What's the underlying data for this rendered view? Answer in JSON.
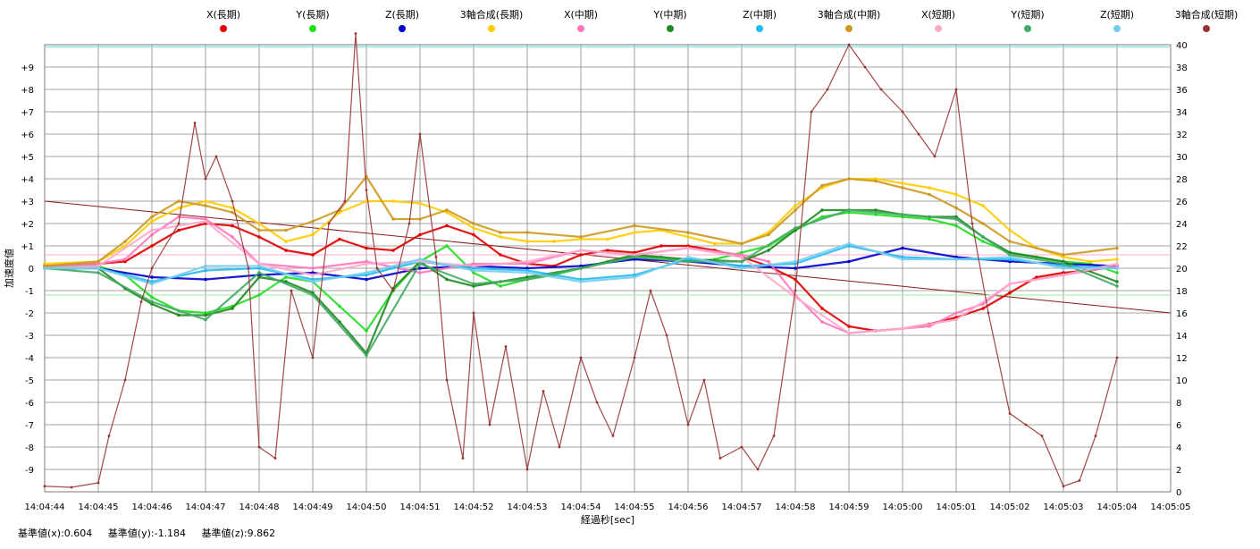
{
  "chart_data": {
    "type": "scatter",
    "xlabel": "経過秒[sec]",
    "ylabel": "加速度値",
    "x_ticks": [
      "14:04:44",
      "14:04:45",
      "14:04:46",
      "14:04:47",
      "14:04:48",
      "14:04:49",
      "14:04:50",
      "14:04:51",
      "14:04:52",
      "14:04:53",
      "14:04:54",
      "14:04:55",
      "14:04:56",
      "14:04:57",
      "14:04:58",
      "14:04:59",
      "14:05:00",
      "14:05:01",
      "14:05:02",
      "14:05:03",
      "14:05:04",
      "14:05:05"
    ],
    "y_left_ticks": [
      "+9",
      "+8",
      "+7",
      "+6",
      "+5",
      "+4",
      "+3",
      "+2",
      "+1",
      "0",
      "-1",
      "-2",
      "-3",
      "-4",
      "-5",
      "-6",
      "-7",
      "-8",
      "-9"
    ],
    "y_right_ticks": [
      "40",
      "38",
      "36",
      "34",
      "32",
      "30",
      "28",
      "26",
      "24",
      "22",
      "20",
      "18",
      "16",
      "14",
      "12",
      "10",
      "8",
      "6",
      "4",
      "2",
      "0"
    ],
    "xlim_seconds": [
      0,
      21
    ],
    "ylim_left": [
      -10,
      10
    ],
    "ylim_right": [
      0,
      40
    ],
    "grid": true,
    "legend_position": "top",
    "series": [
      {
        "name": "X(長期)",
        "color": "#e00000",
        "axis": "left",
        "x": [
          0,
          1,
          1.5,
          2,
          2.5,
          3,
          3.5,
          4,
          4.5,
          5,
          5.5,
          6,
          6.5,
          7,
          7.5,
          8,
          8.5,
          9,
          9.5,
          10,
          10.5,
          11,
          11.5,
          12,
          12.5,
          13,
          13.5,
          14,
          14.5,
          15,
          15.5,
          16,
          16.5,
          17,
          17.5,
          18,
          18.5,
          19,
          19.5,
          20
        ],
        "y": [
          0.1,
          0.2,
          0.3,
          1.0,
          1.7,
          2.0,
          1.9,
          1.4,
          0.8,
          0.6,
          1.3,
          0.9,
          0.8,
          1.5,
          1.9,
          1.5,
          0.6,
          0.2,
          0.1,
          0.6,
          0.8,
          0.7,
          1.0,
          1.0,
          0.8,
          0.5,
          0.1,
          -0.5,
          -1.8,
          -2.6,
          -2.8,
          -2.7,
          -2.5,
          -2.2,
          -1.8,
          -1.1,
          -0.4,
          -0.2,
          -0.1,
          0.1
        ]
      },
      {
        "name": "Y(長期)",
        "color": "#22dd22",
        "axis": "left",
        "x": [
          0,
          1,
          1.5,
          2,
          2.5,
          3,
          3.5,
          4,
          4.5,
          5,
          5.5,
          6,
          6.5,
          7,
          7.5,
          8,
          8.5,
          9,
          9.5,
          10,
          10.5,
          11,
          11.5,
          12,
          12.5,
          13,
          13.5,
          14,
          14.5,
          15,
          15.5,
          16,
          16.5,
          17,
          17.5,
          18,
          18.5,
          19,
          19.5,
          20
        ],
        "y": [
          0.1,
          0.1,
          -0.3,
          -1.3,
          -1.9,
          -2.0,
          -1.7,
          -1.2,
          -0.4,
          -0.6,
          -1.7,
          -2.8,
          -1.0,
          0.3,
          1.0,
          -0.2,
          -0.8,
          -0.5,
          -0.3,
          0.0,
          0.3,
          0.5,
          0.5,
          0.3,
          0.4,
          0.7,
          1.0,
          1.7,
          2.3,
          2.5,
          2.4,
          2.3,
          2.2,
          1.9,
          1.2,
          0.7,
          0.5,
          0.3,
          0.2,
          -0.2
        ]
      },
      {
        "name": "Z(長期)",
        "color": "#0000cc",
        "axis": "left",
        "x": [
          0,
          1,
          2,
          3,
          4,
          5,
          6,
          7,
          8,
          9,
          10,
          11,
          12,
          13,
          14,
          15,
          16,
          17,
          18,
          19,
          20
        ],
        "y": [
          0.0,
          0.0,
          -0.4,
          -0.5,
          -0.3,
          -0.2,
          -0.5,
          0.0,
          0.1,
          0.0,
          0.1,
          0.4,
          0.3,
          0.1,
          0.0,
          0.3,
          0.9,
          0.5,
          0.3,
          0.2,
          0.1
        ]
      },
      {
        "name": "3軸合成(長期)",
        "color": "#ffcc00",
        "axis": "left",
        "x": [
          0,
          1,
          1.5,
          2,
          2.5,
          3,
          3.5,
          4,
          4.5,
          5,
          5.5,
          6,
          6.5,
          7,
          7.5,
          8,
          8.5,
          9,
          9.5,
          10,
          10.5,
          11,
          11.5,
          12,
          12.5,
          13,
          13.5,
          14,
          14.5,
          15,
          15.5,
          16,
          16.5,
          17,
          17.5,
          18,
          18.5,
          19,
          19.5,
          20
        ],
        "y": [
          0.2,
          0.3,
          1.0,
          2.1,
          2.7,
          3.0,
          2.7,
          2.0,
          1.2,
          1.5,
          2.5,
          3.0,
          3.0,
          2.9,
          2.5,
          1.8,
          1.4,
          1.2,
          1.2,
          1.3,
          1.3,
          1.6,
          1.7,
          1.4,
          1.1,
          1.1,
          1.6,
          2.8,
          3.6,
          4.0,
          4.0,
          3.8,
          3.6,
          3.3,
          2.8,
          1.7,
          0.9,
          0.5,
          0.3,
          0.4
        ]
      },
      {
        "name": "X(中期)",
        "color": "#ff77bb",
        "axis": "left",
        "x": [
          0,
          1,
          1.5,
          2,
          2.5,
          3,
          3.5,
          4,
          5,
          6,
          7,
          8,
          9,
          10,
          11,
          12,
          13,
          13.5,
          14,
          14.5,
          15,
          15.5,
          16,
          16.5,
          17,
          17.5,
          18,
          19,
          20
        ],
        "y": [
          0.1,
          0.2,
          0.4,
          1.5,
          2.3,
          2.2,
          1.4,
          0.2,
          0.0,
          0.3,
          -0.2,
          0.2,
          0.2,
          0.8,
          0.6,
          0.9,
          0.6,
          0.3,
          -1.2,
          -2.4,
          -2.9,
          -2.8,
          -2.7,
          -2.6,
          -2.0,
          -1.6,
          -0.7,
          -0.3,
          0.1
        ]
      },
      {
        "name": "Y(中期)",
        "color": "#228822",
        "axis": "left",
        "x": [
          0,
          1,
          1.5,
          2,
          2.5,
          3,
          3.5,
          4,
          4.5,
          5,
          5.5,
          6,
          6.5,
          7,
          7.5,
          8,
          8.5,
          9,
          10,
          11,
          12,
          13,
          13.5,
          14,
          14.5,
          15,
          15.5,
          16,
          16.5,
          17,
          17.5,
          18,
          19,
          20
        ],
        "y": [
          0.0,
          0.0,
          -0.9,
          -1.6,
          -2.1,
          -2.1,
          -1.8,
          -0.4,
          -0.6,
          -1.1,
          -2.4,
          -3.8,
          -0.9,
          0.3,
          -0.5,
          -0.8,
          -0.6,
          -0.4,
          0.0,
          0.6,
          0.4,
          0.3,
          0.8,
          1.7,
          2.6,
          2.6,
          2.6,
          2.4,
          2.3,
          2.3,
          1.4,
          0.7,
          0.3,
          -0.6
        ]
      },
      {
        "name": "Z(中期)",
        "color": "#22bbee",
        "axis": "left",
        "x": [
          0,
          1,
          2,
          3,
          4,
          5,
          6,
          7,
          8,
          9,
          10,
          11,
          12,
          13,
          14,
          15,
          16,
          17,
          18,
          19,
          20
        ],
        "y": [
          0.0,
          0.0,
          -0.6,
          -0.1,
          0.0,
          -0.5,
          -0.3,
          0.3,
          0.0,
          -0.1,
          -0.5,
          -0.3,
          0.4,
          0.1,
          0.2,
          1.0,
          0.5,
          0.4,
          0.4,
          0.1,
          0.0
        ]
      },
      {
        "name": "3軸合成(中期)",
        "color": "#cc9922",
        "axis": "left",
        "x": [
          0,
          1,
          1.5,
          2,
          2.5,
          3,
          3.5,
          4,
          4.5,
          5,
          5.5,
          6,
          6.5,
          7,
          7.5,
          8,
          8.5,
          9,
          10,
          11,
          12,
          13,
          13.5,
          14,
          14.5,
          15,
          15.5,
          16,
          16.5,
          17,
          17.5,
          18,
          19,
          20
        ],
        "y": [
          0.1,
          0.3,
          1.2,
          2.3,
          3.0,
          2.8,
          2.5,
          1.7,
          1.7,
          2.1,
          2.6,
          4.1,
          2.2,
          2.2,
          2.6,
          2.0,
          1.6,
          1.6,
          1.4,
          1.9,
          1.6,
          1.1,
          1.5,
          2.6,
          3.7,
          4.0,
          3.9,
          3.6,
          3.3,
          2.7,
          2.0,
          1.2,
          0.6,
          0.9
        ]
      },
      {
        "name": "X(短期)",
        "color": "#ffaacc",
        "axis": "left",
        "x": [
          0,
          1,
          2,
          3,
          4,
          5,
          6,
          7,
          8,
          9,
          10,
          11,
          12,
          13,
          14,
          15,
          16,
          17,
          18,
          19,
          20
        ],
        "y": [
          0.0,
          0.1,
          1.7,
          2.1,
          0.2,
          -0.3,
          0.2,
          0.3,
          0.1,
          0.3,
          0.8,
          0.6,
          0.9,
          0.5,
          -1.3,
          -2.9,
          -2.7,
          -2.3,
          -0.7,
          -0.3,
          0.2
        ]
      },
      {
        "name": "Y(短期)",
        "color": "#44aa66",
        "axis": "left",
        "x": [
          0,
          1,
          2,
          3,
          4,
          5,
          6,
          7,
          8,
          9,
          10,
          11,
          12,
          13,
          14,
          15,
          16,
          17,
          18,
          19,
          20
        ],
        "y": [
          0.0,
          -0.2,
          -1.5,
          -2.3,
          -0.2,
          -1.2,
          -3.9,
          0.2,
          -0.7,
          -0.5,
          0.0,
          0.5,
          0.3,
          0.3,
          1.8,
          2.6,
          2.4,
          2.2,
          0.6,
          0.2,
          -0.8
        ]
      },
      {
        "name": "Z(短期)",
        "color": "#77ccee",
        "axis": "left",
        "x": [
          0,
          1,
          2,
          3,
          4,
          5,
          6,
          7,
          8,
          9,
          10,
          11,
          12,
          13,
          14,
          15,
          16,
          17,
          18,
          19,
          20
        ],
        "y": [
          0.0,
          0.0,
          -0.7,
          0.1,
          0.1,
          -0.6,
          -0.2,
          0.4,
          -0.1,
          -0.2,
          -0.6,
          -0.4,
          0.5,
          0.0,
          0.3,
          1.1,
          0.4,
          0.4,
          0.5,
          0.0,
          0.0
        ]
      },
      {
        "name": "3軸合成(短期)",
        "color": "#993333",
        "axis": "right",
        "x": [
          0,
          0.5,
          1,
          1.2,
          1.5,
          1.8,
          2,
          2.5,
          2.8,
          3,
          3.2,
          3.5,
          3.8,
          4,
          4.3,
          4.6,
          5,
          5.3,
          5.6,
          5.8,
          6,
          6.2,
          6.5,
          6.8,
          7,
          7.3,
          7.5,
          7.8,
          8,
          8.3,
          8.6,
          9,
          9.3,
          9.6,
          10,
          10.3,
          10.6,
          11,
          11.3,
          11.6,
          12,
          12.3,
          12.6,
          13,
          13.3,
          13.6,
          14,
          14.3,
          14.6,
          15,
          15.3,
          15.6,
          16,
          16.3,
          16.6,
          17,
          17.3,
          17.6,
          18,
          18.3,
          18.6,
          19,
          19.3,
          19.6,
          20
        ],
        "y": [
          0.5,
          0.4,
          0.8,
          5.0,
          10.0,
          17.0,
          20.0,
          24.0,
          33.0,
          28.0,
          30.0,
          26.0,
          20.0,
          4.0,
          3.0,
          18.0,
          12.0,
          24.0,
          26.0,
          41.0,
          27.0,
          20.0,
          18.0,
          24.0,
          32.0,
          21.0,
          10.0,
          3.0,
          16.0,
          6.0,
          13.0,
          2.0,
          9.0,
          4.0,
          12.0,
          8.0,
          5.0,
          12.0,
          18.0,
          14.0,
          6.0,
          10.0,
          3.0,
          4.0,
          2.0,
          5.0,
          18.0,
          34.0,
          36.0,
          40.0,
          38.0,
          36.0,
          34.0,
          32.0,
          30.0,
          36.0,
          24.0,
          16.0,
          7.0,
          6.0,
          5.0,
          0.5,
          1.0,
          5.0,
          12.0
        ]
      }
    ],
    "reference_lines": [
      {
        "color": "#8b1a1a",
        "axis": "left",
        "x": [
          0,
          21
        ],
        "y": [
          3.0,
          -2.0
        ]
      },
      {
        "color": "#7fd9ec",
        "axis": "left",
        "x": [
          0,
          21
        ],
        "y": [
          9.9,
          9.9
        ]
      },
      {
        "color": "#ffaacc",
        "axis": "left",
        "x": [
          0,
          21
        ],
        "y": [
          0.6,
          0.6
        ]
      },
      {
        "color": "#99ee99",
        "axis": "left",
        "x": [
          0,
          21
        ],
        "y": [
          -1.2,
          -1.2
        ]
      }
    ]
  },
  "footer": {
    "base_x": "基準値(x):0.604",
    "base_y": "基準値(y):-1.184",
    "base_z": "基準値(z):9.862"
  }
}
